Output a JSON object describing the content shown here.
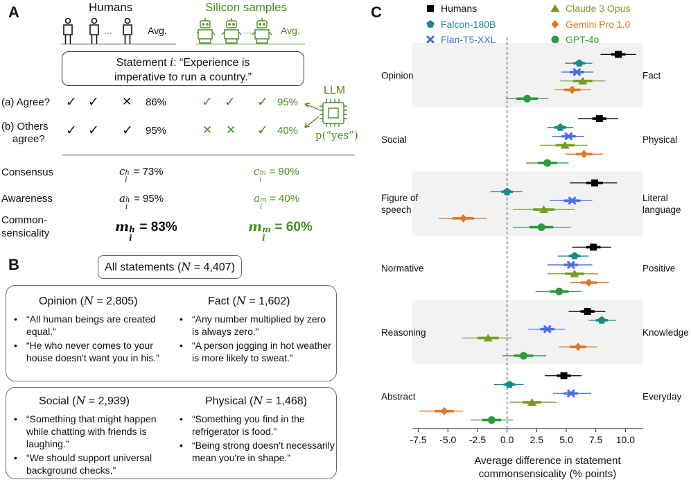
{
  "panel_a": {
    "letter": "A",
    "humans_title": "Humans",
    "silicon_title": "Silicon samples",
    "avg_label": "Avg.",
    "ellipsis": "···",
    "statement_prefix": "Statement ",
    "statement_var": "i",
    "statement_line1": ": “Experience is",
    "statement_line2": "imperative to run a country.”",
    "llm_label": "LLM",
    "p_yes": "p(“yes”)",
    "q_agree": "(a) Agree?",
    "q_others_1": "(b) Others",
    "q_others_2": "agree?",
    "human_agree_pct": "86%",
    "human_others_pct": "95%",
    "llm_agree_pct": "95%",
    "llm_others_pct": "40%",
    "row_consensus": "Consensus",
    "row_awareness": "Awareness",
    "row_common_1": "Common-",
    "row_common_2": "sensicality",
    "human_consensus": "= 73%",
    "human_awareness": "= 95%",
    "human_common": "= 83%",
    "llm_consensus": "= 90%",
    "llm_awareness": "= 40%",
    "llm_common": "= 60%",
    "sym_c": "c",
    "sym_a": "a",
    "sym_m": "m",
    "sub_i": "i",
    "sup_h": "h",
    "sup_m": "m",
    "check": "✓",
    "cross": "✕"
  },
  "panel_b": {
    "letter": "B",
    "all_statements": "All statements (",
    "N": "N",
    "all_n": " = 4,407)",
    "opinion_title": "Opinion (",
    "opinion_n": " = 2,805)",
    "fact_title": "Fact (",
    "fact_n": " = 1,602)",
    "social_title": "Social (",
    "social_n": " = 2,939)",
    "physical_title": "Physical (",
    "physical_n": " = 1,468)",
    "bullet": "•",
    "opinion_ex1": "“All human beings are created equal.”",
    "opinion_ex2": "“He who never comes to your house doesn't want you in his.”",
    "fact_ex1": "“Any number multiplied by zero is always zero.”",
    "fact_ex2": "“A person jogging in hot weather is more likely to sweat.”",
    "social_ex1": "“Something that might happen while chatting with friends is laughing.”",
    "social_ex2": "“We should support universal background checks.”",
    "physical_ex1": "“Something you find in the refrigerator is food.”",
    "physical_ex2": "“Being strong doesn't necessarily mean you're in shape.”"
  },
  "panel_c": {
    "letter": "C",
    "xlabel_line1": "Average difference in statement",
    "xlabel_line2": "commonsensicality (% points)"
  },
  "colors": {
    "Humans": "#000000",
    "Falcon-180B": "#1a8a87",
    "Flan-T5-XXL": "#4b6be8",
    "Claude 3 Opus": "#7a9a28",
    "Gemini Pro 1.0": "#e07828",
    "GPT-4o": "#2a9a3a",
    "human_text": "#111111",
    "llm_text": "#4a8c1f",
    "band": "#f2f2f2"
  },
  "chart_data": {
    "type": "scatter",
    "title": "",
    "xlabel": "Average difference in statement commonsensicality (% points)",
    "xlim": [
      -8.0,
      11.5
    ],
    "xticks": [
      -7.5,
      -5.0,
      -2.5,
      0.0,
      2.5,
      5.0,
      7.5,
      10.0
    ],
    "xtick_labels": [
      "-7.5",
      "-5.0",
      "-2.5",
      "0.0",
      "2.5",
      "5.0",
      "7.5",
      "10.0"
    ],
    "legend": [
      {
        "name": "Humans",
        "marker": "square"
      },
      {
        "name": "Claude 3 Opus",
        "marker": "triangle"
      },
      {
        "name": "Falcon-180B",
        "marker": "pentagon"
      },
      {
        "name": "Gemini Pro 1.0",
        "marker": "diamond"
      },
      {
        "name": "Flan-T5-XXL",
        "marker": "x"
      },
      {
        "name": "GPT-4o",
        "marker": "circle"
      }
    ],
    "series_order": [
      "Humans",
      "Falcon-180B",
      "Flan-T5-XXL",
      "Claude 3 Opus",
      "Gemini Pro 1.0",
      "GPT-4o"
    ],
    "groups": [
      {
        "left": "Opinion",
        "right": "Fact",
        "shaded": true,
        "points": [
          {
            "series": "Humans",
            "mean": 9.4,
            "inner": [
              8.8,
              10.0
            ],
            "outer": [
              7.9,
              10.9
            ]
          },
          {
            "series": "Falcon-180B",
            "mean": 6.1,
            "inner": [
              5.6,
              6.6
            ],
            "outer": [
              4.9,
              7.2
            ]
          },
          {
            "series": "Flan-T5-XXL",
            "mean": 5.9,
            "inner": [
              5.3,
              6.5
            ],
            "outer": [
              4.6,
              7.3
            ]
          },
          {
            "series": "Claude 3 Opus",
            "mean": 6.4,
            "inner": [
              5.6,
              7.2
            ],
            "outer": [
              4.5,
              8.3
            ]
          },
          {
            "series": "Gemini Pro 1.0",
            "mean": 5.5,
            "inner": [
              4.8,
              6.2
            ],
            "outer": [
              4.0,
              7.1
            ]
          },
          {
            "series": "GPT-4o",
            "mean": 1.7,
            "inner": [
              0.8,
              2.6
            ],
            "outer": [
              -0.1,
              3.5
            ]
          }
        ]
      },
      {
        "left": "Social",
        "right": "Physical",
        "shaded": false,
        "points": [
          {
            "series": "Humans",
            "mean": 7.8,
            "inner": [
              7.2,
              8.4
            ],
            "outer": [
              6.0,
              9.4
            ]
          },
          {
            "series": "Falcon-180B",
            "mean": 4.5,
            "inner": [
              4.0,
              5.0
            ],
            "outer": [
              3.4,
              5.6
            ]
          },
          {
            "series": "Flan-T5-XXL",
            "mean": 5.2,
            "inner": [
              4.6,
              5.8
            ],
            "outer": [
              3.8,
              6.5
            ]
          },
          {
            "series": "Claude 3 Opus",
            "mean": 4.9,
            "inner": [
              4.1,
              5.7
            ],
            "outer": [
              2.8,
              6.8
            ]
          },
          {
            "series": "Gemini Pro 1.0",
            "mean": 6.5,
            "inner": [
              5.8,
              7.2
            ],
            "outer": [
              4.9,
              8.1
            ]
          },
          {
            "series": "GPT-4o",
            "mean": 3.4,
            "inner": [
              2.6,
              4.2
            ],
            "outer": [
              1.6,
              5.2
            ]
          }
        ]
      },
      {
        "left": "Figure of speech",
        "right": "Literal language",
        "shaded": true,
        "points": [
          {
            "series": "Humans",
            "mean": 7.4,
            "inner": [
              6.7,
              8.1
            ],
            "outer": [
              5.3,
              9.3
            ]
          },
          {
            "series": "Falcon-180B",
            "mean": 0.0,
            "inner": [
              -0.5,
              0.5
            ],
            "outer": [
              -1.4,
              1.3
            ]
          },
          {
            "series": "Flan-T5-XXL",
            "mean": 5.5,
            "inner": [
              4.8,
              6.2
            ],
            "outer": [
              3.6,
              7.2
            ]
          },
          {
            "series": "Claude 3 Opus",
            "mean": 3.1,
            "inner": [
              2.2,
              4.0
            ],
            "outer": [
              0.5,
              5.7
            ]
          },
          {
            "series": "Gemini Pro 1.0",
            "mean": -3.7,
            "inner": [
              -4.6,
              -2.8
            ],
            "outer": [
              -5.8,
              -1.7
            ]
          },
          {
            "series": "GPT-4o",
            "mean": 2.9,
            "inner": [
              1.9,
              3.9
            ],
            "outer": [
              0.5,
              5.4
            ]
          }
        ]
      },
      {
        "left": "Normative",
        "right": "Positive",
        "shaded": false,
        "points": [
          {
            "series": "Humans",
            "mean": 7.3,
            "inner": [
              6.7,
              7.9
            ],
            "outer": [
              5.5,
              8.8
            ]
          },
          {
            "series": "Falcon-180B",
            "mean": 5.7,
            "inner": [
              5.2,
              6.2
            ],
            "outer": [
              4.3,
              6.9
            ]
          },
          {
            "series": "Flan-T5-XXL",
            "mean": 5.4,
            "inner": [
              4.8,
              6.0
            ],
            "outer": [
              3.4,
              7.2
            ]
          },
          {
            "series": "Claude 3 Opus",
            "mean": 5.7,
            "inner": [
              4.9,
              6.5
            ],
            "outer": [
              3.4,
              7.7
            ]
          },
          {
            "series": "Gemini Pro 1.0",
            "mean": 6.9,
            "inner": [
              6.2,
              7.6
            ],
            "outer": [
              5.3,
              8.6
            ]
          },
          {
            "series": "GPT-4o",
            "mean": 4.4,
            "inner": [
              3.6,
              5.2
            ],
            "outer": [
              2.4,
              6.3
            ]
          }
        ]
      },
      {
        "left": "Reasoning",
        "right": "Knowledge",
        "shaded": true,
        "points": [
          {
            "series": "Humans",
            "mean": 6.8,
            "inner": [
              6.2,
              7.4
            ],
            "outer": [
              5.2,
              8.3
            ]
          },
          {
            "series": "Falcon-180B",
            "mean": 8.0,
            "inner": [
              7.5,
              8.5
            ],
            "outer": [
              6.9,
              9.2
            ]
          },
          {
            "series": "Flan-T5-XXL",
            "mean": 3.4,
            "inner": [
              2.8,
              4.0
            ],
            "outer": [
              1.8,
              4.9
            ]
          },
          {
            "series": "Claude 3 Opus",
            "mean": -1.6,
            "inner": [
              -2.5,
              -0.7
            ],
            "outer": [
              -3.8,
              0.4
            ]
          },
          {
            "series": "Gemini Pro 1.0",
            "mean": 6.0,
            "inner": [
              5.3,
              6.7
            ],
            "outer": [
              4.4,
              7.6
            ]
          },
          {
            "series": "GPT-4o",
            "mean": 1.4,
            "inner": [
              0.6,
              2.2
            ],
            "outer": [
              -0.4,
              3.3
            ]
          }
        ]
      },
      {
        "left": "Abstract",
        "right": "Everyday",
        "shaded": false,
        "points": [
          {
            "series": "Humans",
            "mean": 4.8,
            "inner": [
              4.2,
              5.4
            ],
            "outer": [
              3.2,
              6.3
            ]
          },
          {
            "series": "Falcon-180B",
            "mean": 0.2,
            "inner": [
              -0.3,
              0.7
            ],
            "outer": [
              -1.1,
              1.4
            ]
          },
          {
            "series": "Flan-T5-XXL",
            "mean": 5.4,
            "inner": [
              4.8,
              6.0
            ],
            "outer": [
              3.9,
              7.1
            ]
          },
          {
            "series": "Claude 3 Opus",
            "mean": 2.1,
            "inner": [
              1.3,
              2.9
            ],
            "outer": [
              0.2,
              4.2
            ]
          },
          {
            "series": "Gemini Pro 1.0",
            "mean": -5.3,
            "inner": [
              -6.1,
              -4.5
            ],
            "outer": [
              -7.4,
              -3.7
            ]
          },
          {
            "series": "GPT-4o",
            "mean": -1.3,
            "inner": [
              -2.1,
              -0.5
            ],
            "outer": [
              -3.1,
              0.5
            ]
          }
        ]
      }
    ]
  }
}
